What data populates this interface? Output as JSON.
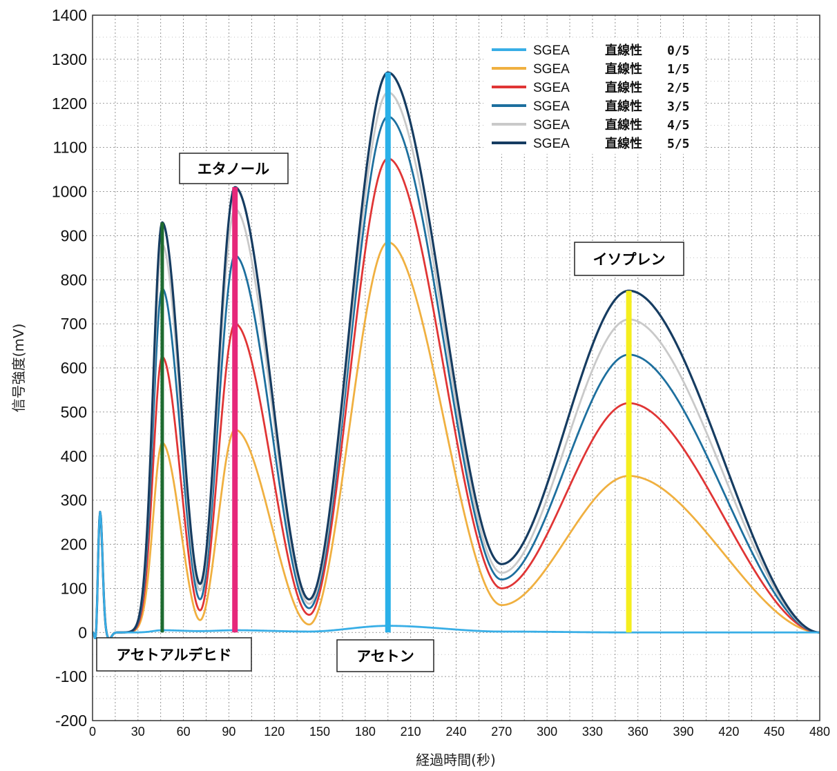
{
  "chart_data": {
    "type": "line",
    "xlabel": "経過時間(秒)",
    "ylabel": "信号強度(mV)",
    "xlim": [
      0,
      480
    ],
    "ylim": [
      -200,
      1400
    ],
    "xticks": [
      0,
      30,
      60,
      90,
      120,
      150,
      180,
      210,
      240,
      270,
      300,
      330,
      360,
      390,
      420,
      450,
      480
    ],
    "yticks": [
      -200,
      -100,
      0,
      100,
      200,
      300,
      400,
      500,
      600,
      700,
      800,
      900,
      1000,
      1100,
      1200,
      1300,
      1400
    ],
    "grid": true,
    "legend_position": "top-right",
    "series": [
      {
        "name": "SGEA",
        "label": "直線性",
        "level": "0/5",
        "color": "#38aee6",
        "peaks": {
          "acetaldehyde": 5,
          "ethanol": 5,
          "acetone": 15,
          "isoprene": 0
        },
        "valleys": {
          "v1": 3,
          "v2": 2,
          "v3": 2
        }
      },
      {
        "name": "SGEA",
        "label": "直線性",
        "level": "1/5",
        "color": "#f0b040",
        "peaks": {
          "acetaldehyde": 430,
          "ethanol": 460,
          "acetone": 885,
          "isoprene": 355
        },
        "valleys": {
          "v1": 28,
          "v2": 18,
          "v3": 62
        }
      },
      {
        "name": "SGEA",
        "label": "直線性",
        "level": "2/5",
        "color": "#e03535",
        "peaks": {
          "acetaldehyde": 625,
          "ethanol": 700,
          "acetone": 1075,
          "isoprene": 520
        },
        "valleys": {
          "v1": 50,
          "v2": 40,
          "v3": 100
        }
      },
      {
        "name": "SGEA",
        "label": "直線性",
        "level": "3/5",
        "color": "#1d6f9e",
        "peaks": {
          "acetaldehyde": 780,
          "ethanol": 855,
          "acetone": 1170,
          "isoprene": 630
        },
        "valleys": {
          "v1": 75,
          "v2": 55,
          "v3": 120
        }
      },
      {
        "name": "SGEA",
        "label": "直線性",
        "level": "4/5",
        "color": "#c9c9c9",
        "peaks": {
          "acetaldehyde": 880,
          "ethanol": 960,
          "acetone": 1225,
          "isoprene": 710
        },
        "valleys": {
          "v1": 95,
          "v2": 65,
          "v3": 135
        }
      },
      {
        "name": "SGEA",
        "label": "直線性",
        "level": "5/5",
        "color": "#163c61",
        "peaks": {
          "acetaldehyde": 930,
          "ethanol": 1010,
          "acetone": 1270,
          "isoprene": 775
        },
        "valleys": {
          "v1": 110,
          "v2": 75,
          "v3": 155
        }
      }
    ],
    "peak_markers": [
      {
        "name": "acetaldehyde",
        "x": 46,
        "y": 930,
        "color": "#1e6b30"
      },
      {
        "name": "ethanol",
        "x": 94,
        "y": 1010,
        "color": "#e6287a"
      },
      {
        "name": "acetone",
        "x": 195,
        "y": 1270,
        "color": "#2ab0e8"
      },
      {
        "name": "isoprene",
        "x": 354,
        "y": 775,
        "color": "#f5ee1e"
      }
    ],
    "initial_spike": {
      "x": [
        2,
        3,
        5,
        8,
        11
      ],
      "y": [
        0,
        -70,
        275,
        0,
        -15
      ]
    },
    "annotations": [
      {
        "name": "ethanol",
        "text": "エタノール"
      },
      {
        "name": "isoprene",
        "text": "イソプレン"
      },
      {
        "name": "acetaldehyde",
        "text": "アセトアルデヒド"
      },
      {
        "name": "acetone",
        "text": "アセトン"
      }
    ]
  }
}
